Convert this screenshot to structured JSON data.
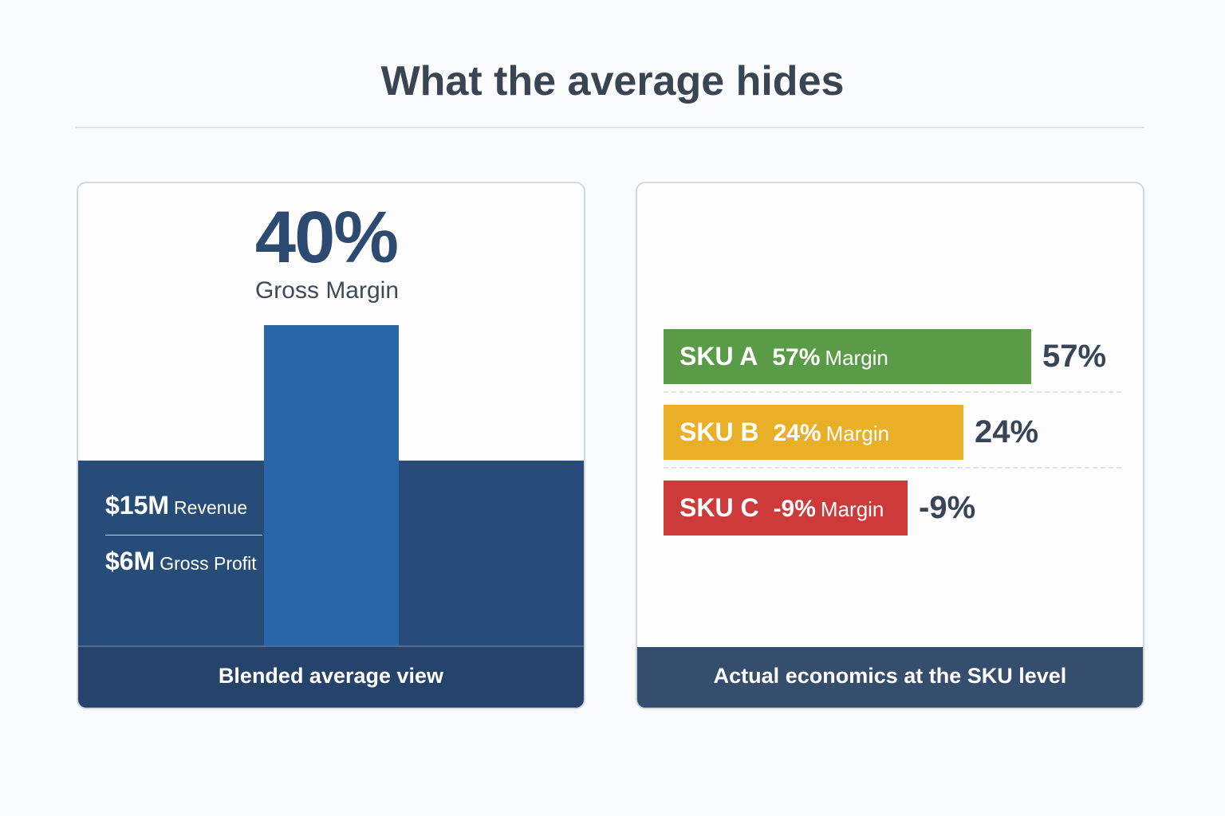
{
  "title": "What the average hides",
  "left_panel": {
    "headline_value": "40%",
    "headline_label": "Gross Margin",
    "revenue_value": "$15M",
    "revenue_label": "Revenue",
    "profit_value": "$6M",
    "profit_label": "Gross Profit",
    "footer": "Blended average view"
  },
  "right_panel": {
    "footer": "Actual economics at the SKU level"
  },
  "chart_data": {
    "type": "bar",
    "orientation": "horizontal",
    "title": "Actual economics at the SKU level",
    "categories": [
      "SKU A",
      "SKU B",
      "SKU C"
    ],
    "values": [
      57,
      24,
      -9
    ],
    "unit": "%",
    "blended_average": 40,
    "rows": [
      {
        "name": "SKU A",
        "pct": "57%",
        "label": "Margin",
        "value_label": "57%",
        "color": "#5a9b48"
      },
      {
        "name": "SKU B",
        "pct": "24%",
        "label": "Margin",
        "value_label": "24%",
        "color": "#e9af26"
      },
      {
        "name": "SKU C",
        "pct": "-9%",
        "label": "Margin",
        "value_label": "-9%",
        "color": "#cc3a3a"
      }
    ]
  }
}
